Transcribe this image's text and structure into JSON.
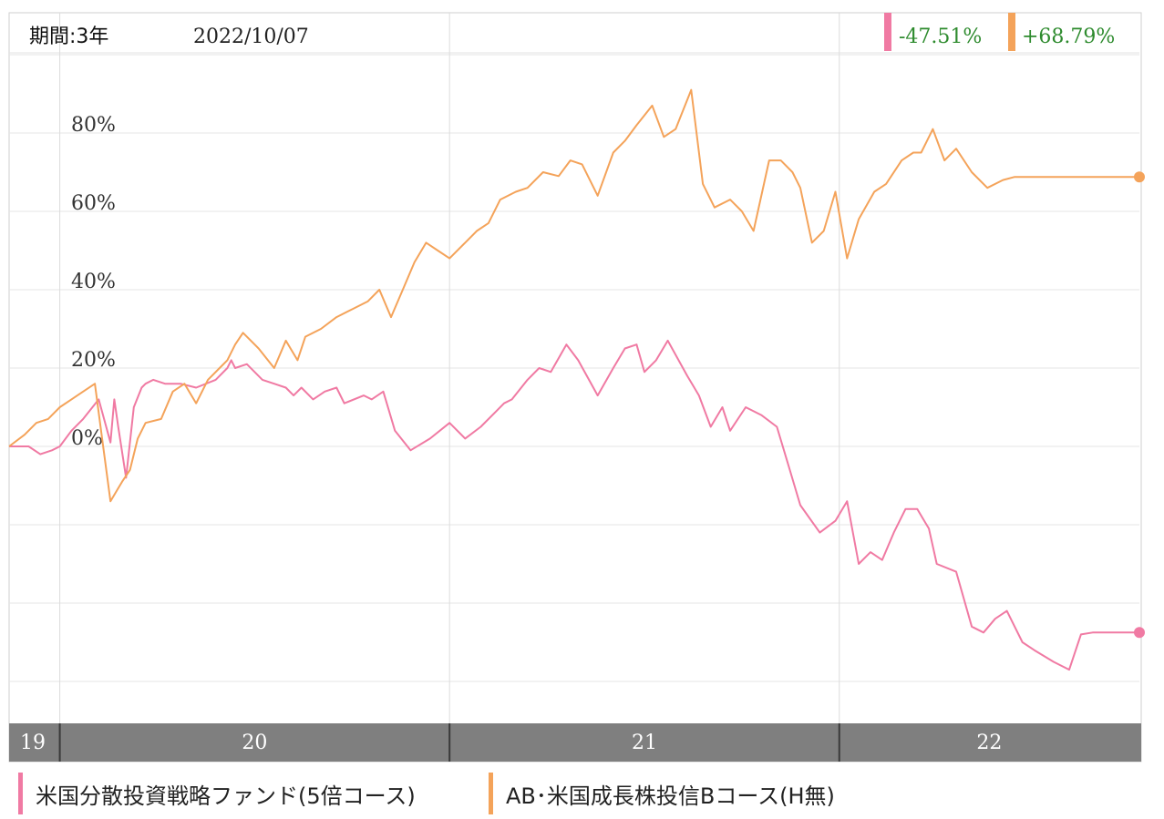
{
  "header": {
    "period_label": "期間:3年",
    "date": "2022/10/07"
  },
  "summary": [
    {
      "value": "-47.51%",
      "color": "#f07aa3"
    },
    {
      "value": "+68.79%",
      "color": "#f4a35a"
    }
  ],
  "legend": [
    {
      "label": "米国分散投資戦略ファンド(5倍コース)",
      "color": "#f07aa3"
    },
    {
      "label": "AB･米国成長株投信Bコース(H無)",
      "color": "#f4a35a"
    }
  ],
  "chart_data": {
    "type": "line",
    "title": "",
    "xlabel": "",
    "ylabel": "",
    "x_ticks": [
      "19",
      "20",
      "21",
      "22"
    ],
    "y_ticks": [
      "0%",
      "20%",
      "40%",
      "60%",
      "80%"
    ],
    "ylim": [
      -58,
      100
    ],
    "xlim": [
      2019.87,
      2022.77
    ],
    "grid": true,
    "colors": {
      "pink": "#f07aa3",
      "orange": "#f4a35a",
      "axis_band": "#7f7f7f",
      "value_text": "#2e8b2e"
    },
    "series": [
      {
        "color": "#f07aa3",
        "final_value": -47.51,
        "x": [
          2019.87,
          2019.92,
          2019.95,
          2019.98,
          2020.0,
          2020.03,
          2020.06,
          2020.1,
          2020.13,
          2020.14,
          2020.15,
          2020.17,
          2020.19,
          2020.21,
          2020.22,
          2020.24,
          2020.27,
          2020.31,
          2020.35,
          2020.4,
          2020.43,
          2020.44,
          2020.45,
          2020.48,
          2020.52,
          2020.55,
          2020.58,
          2020.6,
          2020.62,
          2020.65,
          2020.68,
          2020.71,
          2020.73,
          2020.78,
          2020.8,
          2020.83,
          2020.86,
          2020.9,
          2020.95,
          2021.0,
          2021.04,
          2021.08,
          2021.12,
          2021.14,
          2021.16,
          2021.2,
          2021.23,
          2021.26,
          2021.3,
          2021.33,
          2021.38,
          2021.42,
          2021.45,
          2021.48,
          2021.5,
          2021.53,
          2021.56,
          2021.61,
          2021.64,
          2021.67,
          2021.7,
          2021.72,
          2021.76,
          2021.8,
          2021.84,
          2021.87,
          2021.9,
          2021.95,
          2021.99,
          2022.02,
          2022.05,
          2022.08,
          2022.11,
          2022.14,
          2022.17,
          2022.2,
          2022.23,
          2022.25,
          2022.3,
          2022.34,
          2022.37,
          2022.4,
          2022.43,
          2022.47,
          2022.5,
          2022.55,
          2022.59,
          2022.62,
          2022.65,
          2022.69,
          2022.73,
          2022.77
        ],
        "y": [
          0,
          0,
          -2,
          -1,
          0,
          4,
          7,
          12,
          1,
          12,
          5,
          -8,
          10,
          15,
          16,
          17,
          16,
          16,
          15,
          17,
          20,
          22,
          20,
          21,
          17,
          16,
          15,
          13,
          15,
          12,
          14,
          15,
          11,
          13,
          12,
          14,
          4,
          -1,
          2,
          6,
          2,
          5,
          9,
          11,
          12,
          17,
          20,
          19,
          26,
          22,
          13,
          20,
          25,
          26,
          19,
          22,
          27,
          18,
          13,
          5,
          10,
          4,
          10,
          8,
          5,
          -5,
          -15,
          -22,
          -19,
          -14,
          -30,
          -27,
          -29,
          -22,
          -16,
          -16,
          -21,
          -30,
          -32,
          -46,
          -47.51,
          -44,
          -42,
          -50,
          -52,
          -55,
          -57,
          -48,
          -47.51,
          -47.51,
          -47.51,
          -47.51
        ]
      },
      {
        "color": "#f4a35a",
        "final_value": 68.79,
        "x": [
          2019.87,
          2019.91,
          2019.94,
          2019.97,
          2020.0,
          2020.03,
          2020.06,
          2020.09,
          2020.11,
          2020.13,
          2020.16,
          2020.18,
          2020.2,
          2020.22,
          2020.26,
          2020.29,
          2020.32,
          2020.35,
          2020.38,
          2020.41,
          2020.43,
          2020.45,
          2020.47,
          2020.51,
          2020.55,
          2020.58,
          2020.61,
          2020.63,
          2020.67,
          2020.71,
          2020.75,
          2020.79,
          2020.82,
          2020.85,
          2020.88,
          2020.91,
          2020.94,
          2020.97,
          2021.0,
          2021.04,
          2021.07,
          2021.1,
          2021.13,
          2021.17,
          2021.2,
          2021.24,
          2021.28,
          2021.31,
          2021.34,
          2021.38,
          2021.42,
          2021.45,
          2021.48,
          2021.52,
          2021.55,
          2021.58,
          2021.62,
          2021.65,
          2021.68,
          2021.72,
          2021.75,
          2021.78,
          2021.82,
          2021.85,
          2021.88,
          2021.9,
          2021.93,
          2021.96,
          2021.99,
          2022.02,
          2022.05,
          2022.09,
          2022.12,
          2022.16,
          2022.19,
          2022.21,
          2022.24,
          2022.27,
          2022.3,
          2022.34,
          2022.38,
          2022.42,
          2022.45,
          2022.49,
          2022.52,
          2022.55,
          2022.58,
          2022.61,
          2022.64,
          2022.67,
          2022.7,
          2022.74,
          2022.77
        ],
        "y": [
          0,
          3,
          6,
          7,
          10,
          12,
          14,
          16,
          1,
          -14,
          -9,
          -6,
          2,
          6,
          7,
          14,
          16,
          11,
          17,
          20,
          22,
          26,
          29,
          25,
          20,
          27,
          22,
          28,
          30,
          33,
          35,
          37,
          40,
          33,
          40,
          47,
          52,
          50,
          48,
          52,
          55,
          57,
          63,
          65,
          66,
          70,
          69,
          73,
          72,
          64,
          75,
          78,
          82,
          87,
          79,
          81,
          91,
          67,
          61,
          63,
          60,
          55,
          73,
          73,
          70,
          66,
          52,
          55,
          65,
          48,
          58,
          65,
          67,
          73,
          75,
          75,
          81,
          73,
          76,
          70,
          66,
          68,
          68.79,
          68.79,
          68.79,
          68.79,
          68.79,
          68.79,
          68.79,
          68.79,
          68.79,
          68.79,
          68.79
        ]
      }
    ]
  }
}
